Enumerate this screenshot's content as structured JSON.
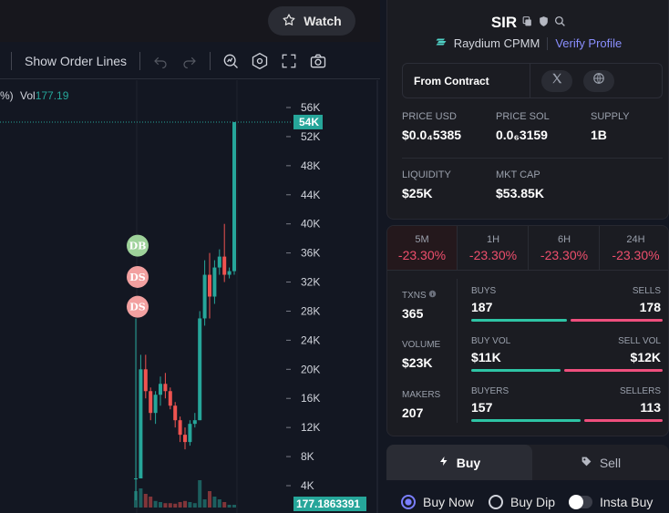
{
  "topbar": {
    "watch_label": "Watch"
  },
  "toolbar": {
    "show_order_lines": "Show Order Lines"
  },
  "legend": {
    "prefix": "%)",
    "vol_label": "Vol",
    "vol_value": "177.19"
  },
  "chart_data": {
    "type": "candlestick",
    "y_ticks": [
      "56K",
      "52K",
      "48K",
      "44K",
      "40K",
      "36K",
      "32K",
      "28K",
      "24K",
      "20K",
      "16K",
      "12K",
      "8K",
      "4K"
    ],
    "y_tick_values": [
      56000,
      52000,
      48000,
      44000,
      40000,
      36000,
      32000,
      28000,
      24000,
      20000,
      16000,
      12000,
      8000,
      4000
    ],
    "ylim": [
      2000,
      58000
    ],
    "current_price_label": "54K",
    "current_price": 54000,
    "volume_label": "177.1863391",
    "markers": [
      {
        "label": "DB",
        "color": "#9ed29a",
        "price": 37000
      },
      {
        "label": "DS",
        "color": "#f2a0a0",
        "price": 32700
      },
      {
        "label": "DS",
        "color": "#f2a0a0",
        "price": 28600
      }
    ],
    "candles": [
      {
        "o": 5000,
        "h": 27000,
        "l": 2000,
        "c": 5000,
        "v": 0.3
      },
      {
        "o": 5000,
        "h": 22000,
        "l": 5000,
        "c": 20000,
        "v": 0.35
      },
      {
        "o": 20000,
        "h": 22000,
        "l": 16000,
        "c": 17000,
        "v": 0.25
      },
      {
        "o": 17000,
        "h": 17500,
        "l": 13000,
        "c": 14000,
        "v": 0.2
      },
      {
        "o": 14000,
        "h": 17000,
        "l": 12500,
        "c": 16500,
        "v": 0.12
      },
      {
        "o": 16500,
        "h": 19000,
        "l": 15000,
        "c": 18000,
        "v": 0.1
      },
      {
        "o": 18000,
        "h": 19500,
        "l": 16000,
        "c": 17000,
        "v": 0.08
      },
      {
        "o": 17000,
        "h": 17500,
        "l": 14500,
        "c": 15000,
        "v": 0.08
      },
      {
        "o": 15000,
        "h": 15500,
        "l": 12000,
        "c": 13000,
        "v": 0.07
      },
      {
        "o": 13000,
        "h": 13500,
        "l": 10000,
        "c": 11000,
        "v": 0.1
      },
      {
        "o": 11000,
        "h": 12000,
        "l": 9000,
        "c": 10000,
        "v": 0.12
      },
      {
        "o": 10000,
        "h": 13000,
        "l": 9500,
        "c": 12500,
        "v": 0.1
      },
      {
        "o": 12500,
        "h": 14000,
        "l": 12000,
        "c": 13000,
        "v": 0.08
      },
      {
        "o": 13000,
        "h": 28000,
        "l": 13000,
        "c": 27000,
        "v": 0.5
      },
      {
        "o": 27000,
        "h": 35000,
        "l": 26000,
        "c": 33000,
        "v": 0.15
      },
      {
        "o": 33000,
        "h": 36000,
        "l": 27000,
        "c": 30000,
        "v": 0.3
      },
      {
        "o": 30000,
        "h": 35000,
        "l": 29000,
        "c": 34000,
        "v": 0.2
      },
      {
        "o": 34000,
        "h": 36500,
        "l": 33000,
        "c": 35500,
        "v": 0.15
      },
      {
        "o": 35500,
        "h": 40000,
        "l": 32000,
        "c": 33000,
        "v": 0.1
      },
      {
        "o": 33000,
        "h": 34000,
        "l": 32500,
        "c": 33500,
        "v": 0.05
      },
      {
        "o": 33500,
        "h": 54000,
        "l": 33000,
        "c": 54000,
        "v": 0.05
      }
    ]
  },
  "token": {
    "symbol": "SIR",
    "dex": "Raydium CPMM",
    "verify_label": "Verify Profile",
    "from_contract": "From Contract"
  },
  "stats": [
    {
      "label": "PRICE USD",
      "value": "$0.0₄5385"
    },
    {
      "label": "PRICE SOL",
      "value": "0.0₆3159"
    },
    {
      "label": "SUPPLY",
      "value": "1B"
    },
    {
      "label": "LIQUIDITY",
      "value": "$25K"
    },
    {
      "label": "MKT CAP",
      "value": "$53.85K"
    }
  ],
  "timeframes": [
    {
      "label": "5M",
      "pct": "-23.30%"
    },
    {
      "label": "1H",
      "pct": "-23.30%"
    },
    {
      "label": "6H",
      "pct": "-23.30%"
    },
    {
      "label": "24H",
      "pct": "-23.30%"
    }
  ],
  "txstats": {
    "txns_label": "TXNS",
    "txns_value": "365",
    "buys_label": "BUYS",
    "buys_value": "187",
    "buys_ratio": 0.512,
    "sells_label": "SELLS",
    "sells_value": "178",
    "volume_label": "VOLUME",
    "volume_value": "$23K",
    "buyvol_label": "BUY VOL",
    "buyvol_value": "$11K",
    "buyvol_ratio": 0.478,
    "sellvol_label": "SELL VOL",
    "sellvol_value": "$12K",
    "makers_label": "MAKERS",
    "makers_value": "207",
    "buyers_label": "BUYERS",
    "buyers_value": "157",
    "buyers_ratio": 0.581,
    "sellers_label": "SELLERS",
    "sellers_value": "113"
  },
  "trade": {
    "buy_tab": "Buy",
    "sell_tab": "Sell",
    "buy_now": "Buy Now",
    "buy_dip": "Buy Dip",
    "insta_buy": "Insta Buy"
  }
}
